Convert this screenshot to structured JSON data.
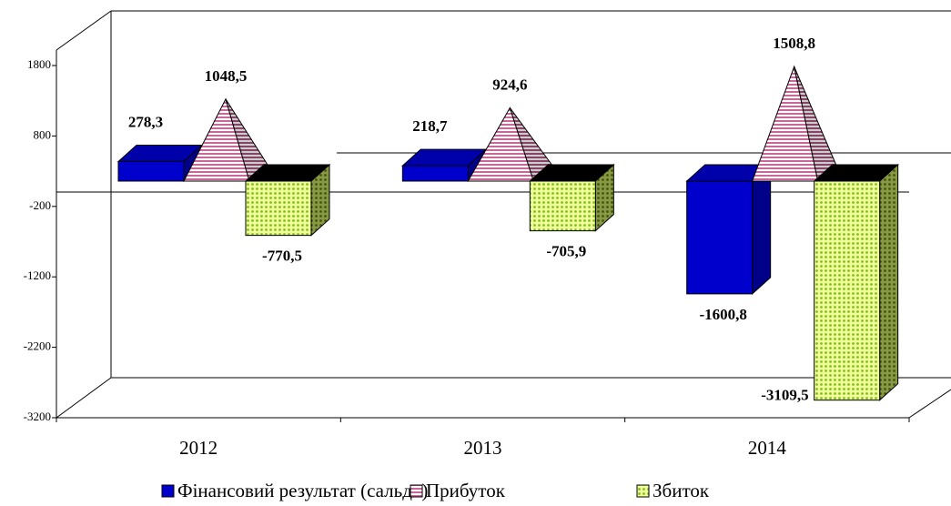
{
  "chart_data": {
    "type": "bar",
    "categories": [
      "2012",
      "2013",
      "2014"
    ],
    "series": [
      {
        "name": "Фінансовий результат (сальдо)",
        "color": "#0000cc",
        "values": [
          278.3,
          218.7,
          -1600.8
        ],
        "value_labels": [
          "278,3",
          "218,7",
          "-1600,8"
        ]
      },
      {
        "name": "Прибуток",
        "color": "#cc6699",
        "values": [
          1048.5,
          924.6,
          1508.8
        ],
        "value_labels": [
          "1048,5",
          "924,6",
          "1508,8"
        ]
      },
      {
        "name": "Збиток",
        "color": "#ccff66",
        "values": [
          -770.5,
          -705.9,
          -3109.5
        ],
        "value_labels": [
          "-770,5",
          "-705,9",
          "-3109,5"
        ]
      }
    ],
    "ylim": [
      -3200,
      1800
    ],
    "yticks": [
      -3200,
      -2200,
      -1200,
      -200,
      800,
      1800
    ]
  }
}
